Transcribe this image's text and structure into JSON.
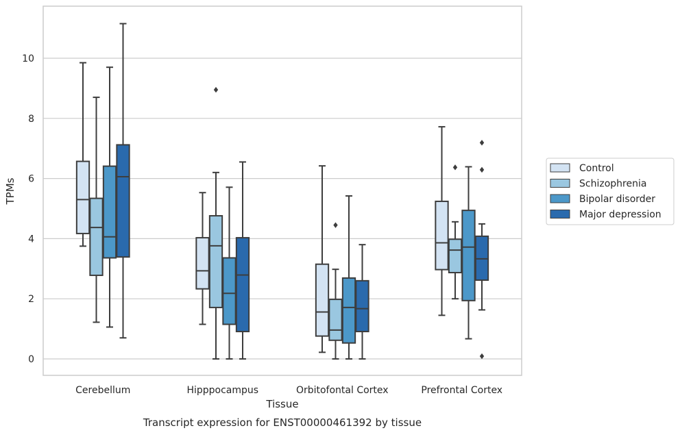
{
  "caption": "Transcript expression for ENST00000461392 by tissue",
  "chart_data": {
    "type": "boxplot",
    "xlabel": "Tissue",
    "ylabel": "TPMs",
    "ylim": [
      -0.55,
      11.7
    ],
    "yticks": [
      0,
      2,
      4,
      6,
      8,
      10
    ],
    "grid": "horizontal",
    "legend_placement": "right",
    "categories": [
      "Cerebellum",
      "Hipppocampus",
      "Orbitofontal Cortex",
      "Prefrontal Cortex"
    ],
    "series": [
      {
        "name": "Control",
        "color": "#d3e3f3",
        "boxes": [
          {
            "whisker_low": 3.75,
            "q1": 4.17,
            "median": 5.3,
            "q3": 6.57,
            "whisker_high": 9.85,
            "outliers": []
          },
          {
            "whisker_low": 1.15,
            "q1": 2.33,
            "median": 2.93,
            "q3": 4.03,
            "whisker_high": 5.53,
            "outliers": []
          },
          {
            "whisker_low": 0.22,
            "q1": 0.76,
            "median": 1.56,
            "q3": 3.15,
            "whisker_high": 6.42,
            "outliers": []
          },
          {
            "whisker_low": 1.45,
            "q1": 2.97,
            "median": 3.86,
            "q3": 5.24,
            "whisker_high": 7.72,
            "outliers": []
          }
        ]
      },
      {
        "name": "Schizophrenia",
        "color": "#9ac7e0",
        "boxes": [
          {
            "whisker_low": 1.22,
            "q1": 2.78,
            "median": 4.37,
            "q3": 5.34,
            "whisker_high": 8.7,
            "outliers": []
          },
          {
            "whisker_low": 0.0,
            "q1": 1.71,
            "median": 3.76,
            "q3": 4.76,
            "whisker_high": 6.2,
            "outliers": [
              8.95
            ]
          },
          {
            "whisker_low": 0.0,
            "q1": 0.62,
            "median": 0.96,
            "q3": 1.98,
            "whisker_high": 2.98,
            "outliers": [
              4.45
            ]
          },
          {
            "whisker_low": 2.0,
            "q1": 2.87,
            "median": 3.62,
            "q3": 3.98,
            "whisker_high": 4.56,
            "outliers": [
              6.37
            ]
          }
        ]
      },
      {
        "name": "Bipolar disorder",
        "color": "#4c98c9",
        "boxes": [
          {
            "whisker_low": 1.06,
            "q1": 3.36,
            "median": 4.06,
            "q3": 6.41,
            "whisker_high": 9.7,
            "outliers": []
          },
          {
            "whisker_low": 0.0,
            "q1": 1.15,
            "median": 2.18,
            "q3": 3.36,
            "whisker_high": 5.71,
            "outliers": []
          },
          {
            "whisker_low": 0.0,
            "q1": 0.53,
            "median": 1.71,
            "q3": 2.69,
            "whisker_high": 5.42,
            "outliers": []
          },
          {
            "whisker_low": 0.67,
            "q1": 1.94,
            "median": 3.72,
            "q3": 4.94,
            "whisker_high": 6.39,
            "outliers": []
          }
        ]
      },
      {
        "name": "Major depression",
        "color": "#2a6aad",
        "boxes": [
          {
            "whisker_low": 0.7,
            "q1": 3.39,
            "median": 6.06,
            "q3": 7.12,
            "whisker_high": 11.15,
            "outliers": []
          },
          {
            "whisker_low": 0.0,
            "q1": 0.91,
            "median": 2.79,
            "q3": 4.03,
            "whisker_high": 6.55,
            "outliers": []
          },
          {
            "whisker_low": 0.0,
            "q1": 0.91,
            "median": 1.67,
            "q3": 2.6,
            "whisker_high": 3.8,
            "outliers": []
          },
          {
            "whisker_low": 1.63,
            "q1": 2.62,
            "median": 3.33,
            "q3": 4.08,
            "whisker_high": 4.49,
            "outliers": [
              7.19,
              6.29,
              0.09
            ]
          }
        ]
      }
    ]
  }
}
